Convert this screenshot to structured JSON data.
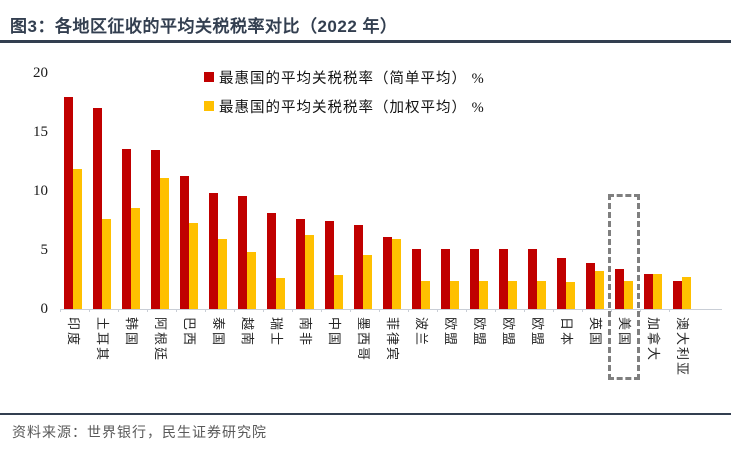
{
  "header": {
    "title": "图3：各地区征收的平均关税税率对比（2022 年）"
  },
  "footer": {
    "source": "资料来源：世界银行，民生证券研究院"
  },
  "legend": [
    {
      "label": "最惠国的平均关税税率（简单平均） %",
      "color": "#C00000"
    },
    {
      "label": "最惠国的平均关税税率（加权平均） %",
      "color": "#FFC000"
    }
  ],
  "chart_data": {
    "type": "bar",
    "title": "图3：各地区征收的平均关税税率对比（2022 年）",
    "xlabel": "",
    "ylabel": "",
    "ylim": [
      0,
      20
    ],
    "yticks": [
      20,
      15,
      10,
      5,
      0
    ],
    "grid": false,
    "legend_position": "top-center",
    "categories": [
      "印度",
      "土耳其",
      "韩国",
      "阿根廷",
      "巴西",
      "泰国",
      "越南",
      "瑞士",
      "南非",
      "中国",
      "墨西哥",
      "菲律宾",
      "波兰",
      "欧盟",
      "欧盟",
      "欧盟",
      "欧盟",
      "日本",
      "英国",
      "美国",
      "加拿大",
      "澳大利亚"
    ],
    "series": [
      {
        "name": "最惠国的平均关税税率（简单平均）%",
        "color": "#C00000",
        "values": [
          18.0,
          17.0,
          13.6,
          13.5,
          11.3,
          9.8,
          9.6,
          8.1,
          7.6,
          7.5,
          7.1,
          6.1,
          5.1,
          5.1,
          5.1,
          5.1,
          5.1,
          4.3,
          3.9,
          3.4,
          3.0,
          2.4
        ]
      },
      {
        "name": "最惠国的平均关税税率（加权平均）%",
        "color": "#FFC000",
        "values": [
          11.9,
          7.6,
          8.6,
          11.1,
          7.3,
          5.9,
          4.8,
          2.6,
          6.3,
          2.9,
          4.6,
          5.9,
          2.4,
          2.4,
          2.4,
          2.4,
          2.4,
          2.3,
          3.2,
          2.4,
          3.0,
          2.7
        ]
      }
    ],
    "highlight": {
      "category": "美国",
      "index": 19,
      "style": "gray-dashed-box"
    }
  },
  "colors": {
    "series_simple": "#C00000",
    "series_weighted": "#FFC000",
    "title_and_rules": "#333F50",
    "source_text": "#595959",
    "axis_line": "#C9CED6",
    "highlight_box": "#7F7F7F"
  }
}
